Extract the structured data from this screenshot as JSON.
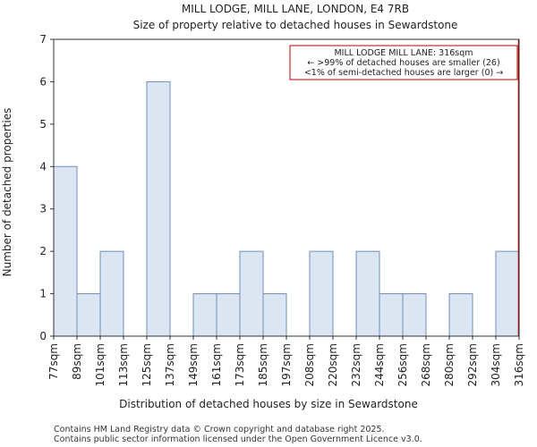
{
  "chart_data": {
    "type": "bar",
    "title": "MILL LODGE, MILL LANE, LONDON, E4 7RB",
    "subtitle": "Size of property relative to detached houses in Sewardstone",
    "xlabel": "Distribution of detached houses by size in Sewardstone",
    "ylabel": "Number of detached properties",
    "bin_edges": [
      77,
      89,
      101,
      113,
      125,
      137,
      149,
      161,
      173,
      185,
      197,
      208,
      220,
      232,
      244,
      256,
      268,
      280,
      292,
      304,
      316
    ],
    "x_tick_labels": [
      "77sqm",
      "89sqm",
      "101sqm",
      "113sqm",
      "125sqm",
      "137sqm",
      "149sqm",
      "161sqm",
      "173sqm",
      "185sqm",
      "197sqm",
      "208sqm",
      "220sqm",
      "232sqm",
      "244sqm",
      "256sqm",
      "268sqm",
      "280sqm",
      "292sqm",
      "304sqm",
      "316sqm"
    ],
    "values": [
      4,
      1,
      2,
      0,
      6,
      0,
      1,
      1,
      2,
      1,
      0,
      2,
      0,
      2,
      1,
      1,
      0,
      1,
      0,
      2
    ],
    "ylim": [
      0,
      7
    ],
    "y_ticks": [
      0,
      1,
      2,
      3,
      4,
      5,
      6,
      7
    ],
    "grid": false,
    "bar_fill": "#dce6f2",
    "bar_edge": "#6f8fb8",
    "marker": {
      "x_index": 20,
      "color": "#bb0000"
    },
    "annotation": {
      "lines": [
        "MILL LODGE MILL LANE: 316sqm",
        "← >99% of detached houses are smaller (26)",
        "<1% of semi-detached houses are larger (0) →"
      ],
      "placement": "top-right",
      "border_color": "#bb0000"
    }
  },
  "footer": {
    "line1": "Contains HM Land Registry data © Crown copyright and database right 2025.",
    "line2": "Contains public sector information licensed under the Open Government Licence v3.0."
  }
}
